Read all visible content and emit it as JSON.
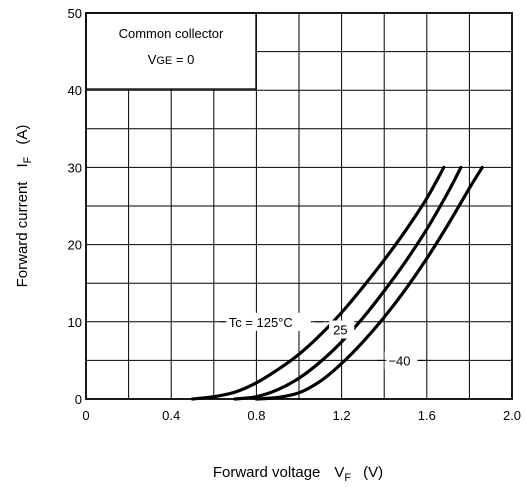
{
  "chart_data": {
    "type": "line",
    "xlabel": {
      "main": "Forward voltage",
      "symbol": "V",
      "subscript": "F",
      "unit": "(V)"
    },
    "ylabel": {
      "main": "Forward current",
      "symbol": "I",
      "subscript": "F",
      "unit": "(A)"
    },
    "xlim": [
      0,
      2.0
    ],
    "ylim": [
      0,
      50
    ],
    "x_ticks": [
      0,
      0.4,
      0.8,
      1.2,
      1.6,
      2.0
    ],
    "x_tick_labels": [
      "0",
      "0.4",
      "0.8",
      "1.2",
      "1.6",
      "2.0"
    ],
    "y_ticks": [
      0,
      10,
      20,
      30,
      40,
      50
    ],
    "y_tick_labels": [
      "0",
      "10",
      "20",
      "30",
      "40",
      "50"
    ],
    "grid": true,
    "annotation_box": {
      "line1": "Common collector",
      "line2_sym": "V",
      "line2_sub": "GE",
      "line2_rest": " = 0"
    },
    "series": [
      {
        "name": "Tc = 125°C",
        "x": [
          0.5,
          0.6,
          0.7,
          0.8,
          0.9,
          1.0,
          1.1,
          1.2,
          1.3,
          1.4,
          1.5,
          1.6,
          1.68
        ],
        "y": [
          0,
          0.3,
          0.9,
          2.1,
          3.8,
          5.8,
          8.3,
          11.2,
          14.5,
          18.0,
          21.8,
          26.0,
          30.0
        ]
      },
      {
        "name": "25",
        "x": [
          0.7,
          0.8,
          0.9,
          1.0,
          1.1,
          1.2,
          1.3,
          1.4,
          1.5,
          1.6,
          1.7,
          1.76
        ],
        "y": [
          0,
          0.3,
          1.2,
          2.7,
          4.8,
          7.4,
          10.5,
          14.0,
          17.8,
          22.0,
          26.8,
          30.0
        ]
      },
      {
        "name": "−40",
        "x": [
          0.8,
          0.9,
          1.0,
          1.1,
          1.2,
          1.3,
          1.4,
          1.5,
          1.6,
          1.7,
          1.8,
          1.86
        ],
        "y": [
          0,
          0.2,
          0.8,
          2.3,
          4.6,
          7.4,
          10.6,
          14.2,
          18.2,
          22.6,
          27.3,
          30.0
        ]
      }
    ]
  }
}
